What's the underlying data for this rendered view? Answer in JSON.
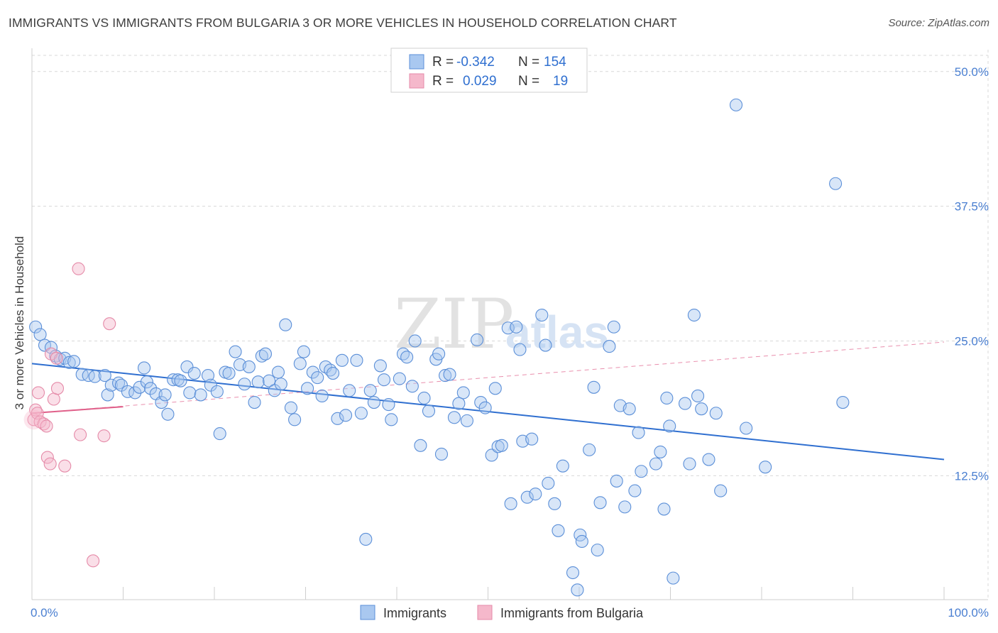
{
  "header": {
    "title": "IMMIGRANTS VS IMMIGRANTS FROM BULGARIA 3 OR MORE VEHICLES IN HOUSEHOLD CORRELATION CHART",
    "source": "Source: ZipAtlas.com"
  },
  "watermark": {
    "zip": "ZIP",
    "atlas": "atlas"
  },
  "colors": {
    "blue_fill": "#a9c8f0",
    "blue_stroke": "#5b8fd8",
    "blue_line": "#2f6fd0",
    "pink_fill": "#f5b8cb",
    "pink_stroke": "#e58aa8",
    "pink_line": "#e0608a",
    "grid": "#d8d8d8",
    "axis_label": "#4a7fd1"
  },
  "legend_top": {
    "rows": [
      {
        "r_label": "R =",
        "r_value": "-0.342",
        "n_label": "N =",
        "n_value": "154",
        "color": "blue"
      },
      {
        "r_label": "R =",
        "r_value": "0.029",
        "n_label": "N =",
        "n_value": "19",
        "color": "pink"
      }
    ]
  },
  "legend_bottom": [
    {
      "label": "Immigrants",
      "color": "blue"
    },
    {
      "label": "Immigrants from Bulgaria",
      "color": "pink"
    }
  ],
  "chart_data": {
    "type": "scatter",
    "title": "IMMIGRANTS VS IMMIGRANTS FROM BULGARIA 3 OR MORE VEHICLES IN HOUSEHOLD CORRELATION CHART",
    "xlabel": "",
    "ylabel": "3 or more Vehicles in Household",
    "xlim": [
      0,
      100
    ],
    "ylim": [
      1.0,
      51.5
    ],
    "x_tick_labels": [
      "0.0%",
      "100.0%"
    ],
    "y_ticks": [
      12.5,
      25.0,
      37.5,
      50.0
    ],
    "y_tick_labels": [
      "12.5%",
      "25.0%",
      "37.5%",
      "50.0%"
    ],
    "grid": true,
    "series": [
      {
        "name": "Immigrants",
        "color": "blue",
        "trend": {
          "x": [
            0,
            100
          ],
          "y": [
            22.9,
            14.0
          ]
        },
        "points": [
          [
            0.4,
            26.3
          ],
          [
            0.9,
            25.6
          ],
          [
            1.4,
            24.6
          ],
          [
            2.1,
            24.4
          ],
          [
            2.6,
            23.6
          ],
          [
            3.1,
            23.3
          ],
          [
            3.6,
            23.4
          ],
          [
            4.1,
            23.0
          ],
          [
            4.6,
            23.1
          ],
          [
            5.5,
            21.9
          ],
          [
            6.2,
            21.8
          ],
          [
            6.9,
            21.7
          ],
          [
            8.0,
            21.8
          ],
          [
            8.3,
            20.0
          ],
          [
            8.7,
            20.9
          ],
          [
            9.5,
            21.1
          ],
          [
            9.8,
            20.9
          ],
          [
            10.5,
            20.3
          ],
          [
            11.3,
            20.2
          ],
          [
            11.8,
            20.7
          ],
          [
            12.3,
            22.5
          ],
          [
            12.6,
            21.2
          ],
          [
            13.0,
            20.6
          ],
          [
            13.6,
            20.1
          ],
          [
            14.2,
            19.3
          ],
          [
            14.6,
            20.0
          ],
          [
            14.9,
            18.2
          ],
          [
            15.5,
            21.4
          ],
          [
            16.0,
            21.4
          ],
          [
            16.3,
            21.3
          ],
          [
            17.0,
            22.6
          ],
          [
            17.3,
            20.2
          ],
          [
            17.8,
            22.0
          ],
          [
            18.5,
            20.0
          ],
          [
            19.3,
            21.8
          ],
          [
            19.6,
            20.9
          ],
          [
            20.3,
            20.3
          ],
          [
            20.6,
            16.4
          ],
          [
            21.2,
            22.1
          ],
          [
            21.6,
            22.0
          ],
          [
            22.3,
            24.0
          ],
          [
            22.8,
            22.8
          ],
          [
            23.3,
            21.0
          ],
          [
            23.8,
            22.6
          ],
          [
            24.4,
            19.3
          ],
          [
            24.8,
            21.2
          ],
          [
            25.2,
            23.6
          ],
          [
            25.6,
            23.8
          ],
          [
            26.0,
            21.3
          ],
          [
            26.6,
            20.4
          ],
          [
            27.0,
            22.1
          ],
          [
            27.3,
            21.0
          ],
          [
            27.8,
            26.5
          ],
          [
            28.4,
            18.8
          ],
          [
            28.8,
            17.7
          ],
          [
            29.4,
            22.9
          ],
          [
            29.8,
            24.0
          ],
          [
            30.2,
            20.6
          ],
          [
            30.8,
            22.1
          ],
          [
            31.3,
            21.6
          ],
          [
            31.8,
            19.9
          ],
          [
            32.2,
            22.6
          ],
          [
            32.7,
            22.3
          ],
          [
            33.0,
            22.0
          ],
          [
            33.5,
            17.8
          ],
          [
            34.0,
            23.2
          ],
          [
            34.4,
            18.1
          ],
          [
            34.8,
            20.4
          ],
          [
            35.6,
            23.2
          ],
          [
            36.1,
            18.3
          ],
          [
            36.6,
            6.6
          ],
          [
            37.1,
            20.4
          ],
          [
            37.5,
            19.3
          ],
          [
            38.2,
            22.7
          ],
          [
            38.6,
            21.4
          ],
          [
            39.1,
            19.1
          ],
          [
            39.4,
            17.7
          ],
          [
            40.3,
            21.5
          ],
          [
            40.7,
            23.8
          ],
          [
            41.1,
            23.5
          ],
          [
            41.7,
            20.8
          ],
          [
            42.0,
            25.0
          ],
          [
            42.6,
            15.3
          ],
          [
            43.0,
            19.7
          ],
          [
            43.5,
            18.5
          ],
          [
            44.3,
            23.3
          ],
          [
            44.6,
            23.8
          ],
          [
            44.9,
            14.5
          ],
          [
            45.3,
            21.8
          ],
          [
            45.8,
            21.9
          ],
          [
            46.3,
            17.9
          ],
          [
            46.8,
            19.2
          ],
          [
            47.3,
            20.2
          ],
          [
            47.7,
            17.6
          ],
          [
            48.8,
            25.1
          ],
          [
            49.2,
            19.3
          ],
          [
            49.7,
            18.8
          ],
          [
            50.4,
            14.4
          ],
          [
            50.8,
            20.6
          ],
          [
            51.1,
            15.2
          ],
          [
            51.5,
            15.3
          ],
          [
            52.2,
            26.2
          ],
          [
            52.5,
            9.9
          ],
          [
            53.1,
            26.3
          ],
          [
            53.5,
            24.2
          ],
          [
            53.8,
            15.7
          ],
          [
            54.3,
            10.5
          ],
          [
            54.8,
            15.9
          ],
          [
            55.2,
            10.8
          ],
          [
            55.9,
            27.4
          ],
          [
            56.3,
            24.6
          ],
          [
            56.6,
            11.8
          ],
          [
            57.3,
            9.9
          ],
          [
            57.7,
            7.4
          ],
          [
            58.2,
            13.4
          ],
          [
            59.3,
            3.5
          ],
          [
            59.8,
            1.9
          ],
          [
            60.1,
            7.0
          ],
          [
            60.3,
            6.4
          ],
          [
            61.1,
            14.9
          ],
          [
            61.6,
            20.7
          ],
          [
            62.0,
            5.6
          ],
          [
            62.3,
            10.0
          ],
          [
            63.3,
            24.5
          ],
          [
            63.8,
            26.3
          ],
          [
            64.1,
            12.0
          ],
          [
            64.5,
            19.0
          ],
          [
            65.0,
            9.6
          ],
          [
            65.5,
            18.7
          ],
          [
            66.1,
            11.1
          ],
          [
            66.5,
            16.5
          ],
          [
            66.8,
            12.9
          ],
          [
            68.4,
            13.6
          ],
          [
            68.9,
            14.7
          ],
          [
            69.3,
            9.4
          ],
          [
            69.6,
            19.7
          ],
          [
            69.9,
            17.1
          ],
          [
            70.3,
            3.0
          ],
          [
            71.6,
            19.2
          ],
          [
            72.1,
            13.6
          ],
          [
            72.6,
            27.4
          ],
          [
            73.0,
            19.9
          ],
          [
            73.4,
            18.7
          ],
          [
            74.2,
            14.0
          ],
          [
            75.0,
            18.3
          ],
          [
            75.5,
            11.1
          ],
          [
            77.2,
            46.9
          ],
          [
            78.3,
            16.9
          ],
          [
            80.4,
            13.3
          ],
          [
            88.1,
            39.6
          ],
          [
            88.9,
            19.3
          ]
        ]
      },
      {
        "name": "Immigrants from Bulgaria",
        "color": "pink",
        "trend": {
          "x": [
            0,
            10
          ],
          "y": [
            18.3,
            18.9
          ]
        },
        "trend_dashed": {
          "x": [
            0,
            100
          ],
          "y": [
            18.3,
            24.9
          ]
        },
        "points": [
          [
            0.2,
            17.7
          ],
          [
            0.4,
            18.6
          ],
          [
            0.6,
            18.3
          ],
          [
            0.7,
            20.2
          ],
          [
            0.9,
            17.5
          ],
          [
            1.3,
            17.3
          ],
          [
            1.6,
            17.1
          ],
          [
            1.7,
            14.2
          ],
          [
            2.0,
            13.6
          ],
          [
            2.1,
            23.8
          ],
          [
            2.4,
            19.6
          ],
          [
            2.7,
            23.4
          ],
          [
            2.8,
            20.6
          ],
          [
            3.6,
            13.4
          ],
          [
            5.1,
            31.7
          ],
          [
            5.3,
            16.3
          ],
          [
            6.7,
            4.6
          ],
          [
            7.9,
            16.2
          ],
          [
            8.5,
            26.6
          ]
        ]
      }
    ]
  }
}
